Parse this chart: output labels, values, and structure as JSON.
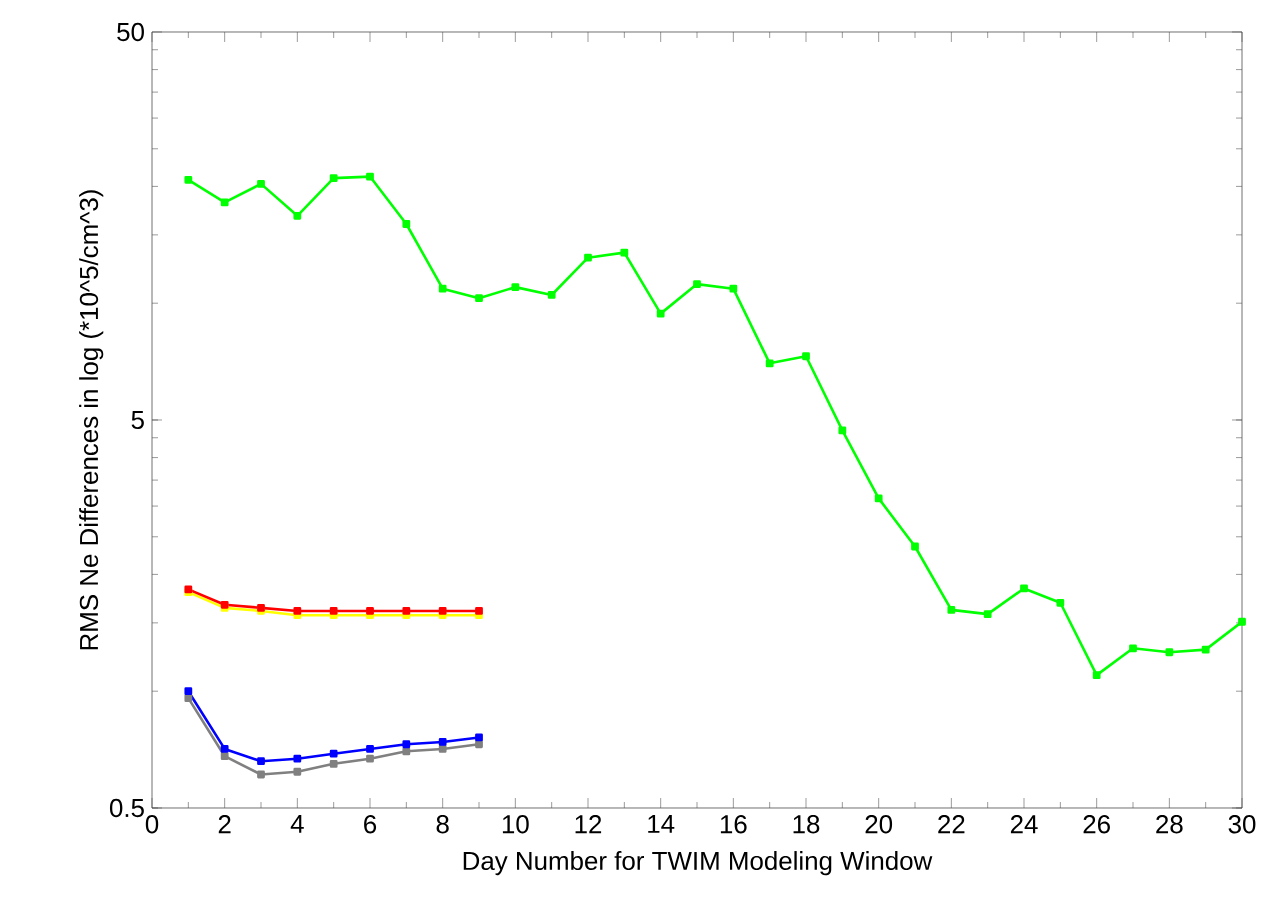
{
  "chart_data": {
    "type": "line",
    "xlabel": "Day Number for TWIM Modeling Window",
    "ylabel": "RMS Ne Differences in log (*10^5/cm^3)",
    "log": "y",
    "marker": "square",
    "line_style": "solid",
    "xlim": [
      0,
      30
    ],
    "xticks": [
      0,
      2,
      4,
      6,
      8,
      10,
      12,
      14,
      16,
      18,
      20,
      22,
      24,
      26,
      28,
      30
    ],
    "ylim": [
      0.5,
      50
    ],
    "yticks": [
      0.5,
      5,
      50
    ],
    "series": [
      {
        "color": "#00ff00",
        "x": [
          1,
          2,
          3,
          4,
          5,
          6,
          7,
          8,
          9,
          10,
          11,
          12,
          13,
          14,
          15,
          16,
          17,
          18,
          19,
          20,
          21,
          22,
          23,
          24,
          25,
          26,
          27,
          28,
          29,
          30
        ],
        "values": [
          20.8,
          18.2,
          20.3,
          16.8,
          21.0,
          21.2,
          16.0,
          10.9,
          10.3,
          11.0,
          10.5,
          13.1,
          13.5,
          9.4,
          11.2,
          10.9,
          7.0,
          7.3,
          4.7,
          3.14,
          2.36,
          1.62,
          1.58,
          1.84,
          1.69,
          1.1,
          1.29,
          1.26,
          1.28,
          1.51
        ]
      },
      {
        "color": "#ffff00",
        "x": [
          1,
          2,
          3,
          4,
          5,
          6,
          7,
          8,
          9
        ],
        "values": [
          1.8,
          1.64,
          1.61,
          1.57,
          1.57,
          1.57,
          1.57,
          1.57,
          1.57
        ]
      },
      {
        "color": "#ff0000",
        "x": [
          1,
          2,
          3,
          4,
          5,
          6,
          7,
          8,
          9
        ],
        "values": [
          1.83,
          1.67,
          1.64,
          1.61,
          1.61,
          1.61,
          1.61,
          1.61,
          1.61
        ]
      },
      {
        "color": "#808080",
        "x": [
          1,
          2,
          3,
          4,
          5,
          6,
          7,
          8,
          9
        ],
        "values": [
          0.96,
          0.68,
          0.61,
          0.62,
          0.65,
          0.67,
          0.7,
          0.71,
          0.73
        ]
      },
      {
        "color": "#0000ff",
        "x": [
          1,
          2,
          3,
          4,
          5,
          6,
          7,
          8,
          9
        ],
        "values": [
          1.0,
          0.71,
          0.66,
          0.67,
          0.69,
          0.71,
          0.73,
          0.74,
          0.76
        ]
      }
    ]
  }
}
